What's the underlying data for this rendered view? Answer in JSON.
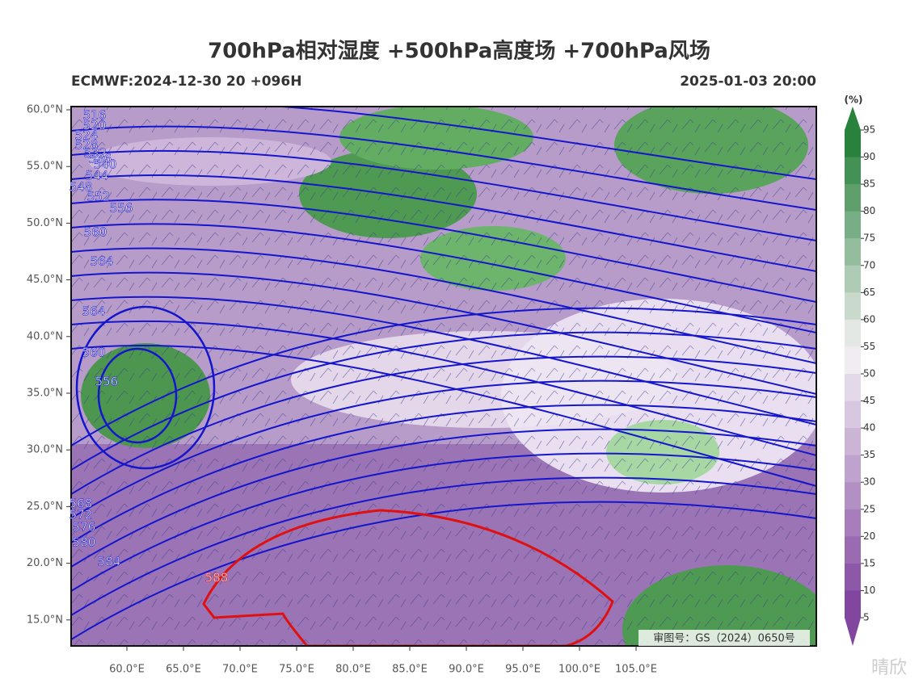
{
  "header": {
    "title": "700hPa相对湿度 +500hPa高度场 +700hPa风场",
    "run": "ECMWF:2024-12-30 20 +096H",
    "valid": "2025-01-03 20:00"
  },
  "map": {
    "lat_labels": [
      "60.0°N",
      "55.0°N",
      "50.0°N",
      "45.0°N",
      "40.0°N",
      "35.0°N",
      "30.0°N",
      "25.0°N",
      "20.0°N",
      "15.0°N"
    ],
    "lon_labels": [
      "60.0°E",
      "65.0°E",
      "70.0°E",
      "75.0°E",
      "80.0°E",
      "85.0°E",
      "90.0°E",
      "95.0°E",
      "100.0°E",
      "105.0°E"
    ],
    "contour_labels": [
      "516",
      "520",
      "524",
      "528",
      "532",
      "536",
      "540",
      "544",
      "548",
      "552",
      "556",
      "560",
      "564",
      "564",
      "560",
      "556",
      "568",
      "572",
      "576",
      "580",
      "584",
      "588"
    ]
  },
  "colorbar": {
    "unit": "(%)",
    "ticks": [
      95,
      90,
      85,
      80,
      75,
      70,
      65,
      60,
      55,
      50,
      45,
      40,
      35,
      30,
      25,
      20,
      15,
      10,
      5
    ]
  },
  "approval": "审图号：GS（2024）0650号",
  "watermark": "晴欣"
}
